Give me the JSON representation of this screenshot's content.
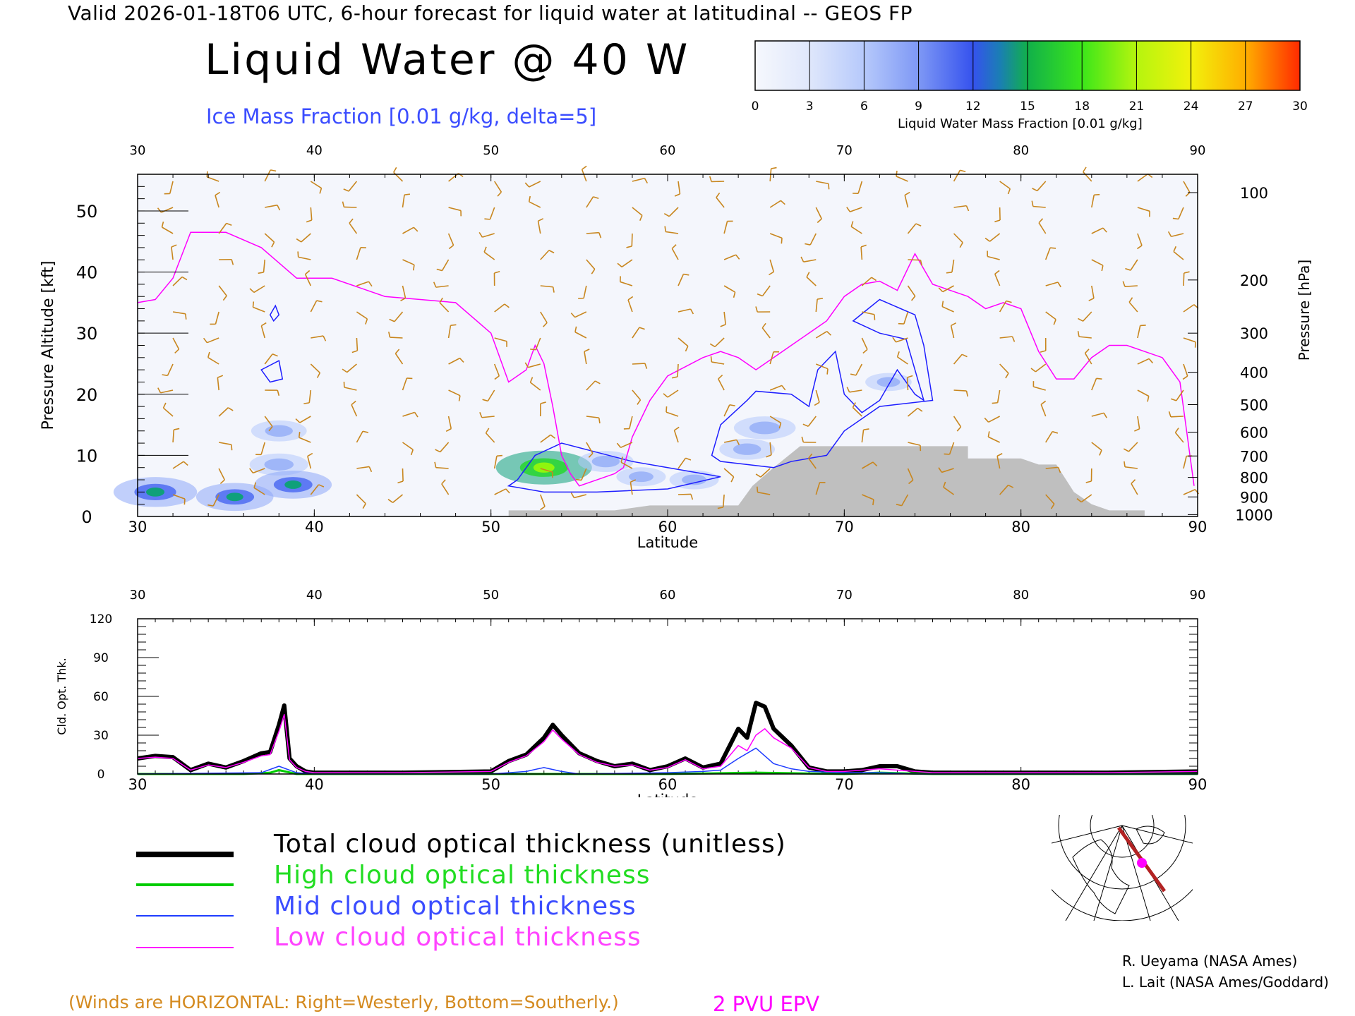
{
  "header": {
    "valid_line": "Valid 2026-01-18T06 UTC, 6-hour forecast for liquid water at latitudinal -- GEOS FP",
    "title": "Liquid Water @ 40 W",
    "ice_label": "Ice Mass Fraction [0.01 g/kg, delta=5]"
  },
  "colorbar": {
    "ticks": [
      "0",
      "3",
      "6",
      "9",
      "12",
      "15",
      "18",
      "21",
      "24",
      "27",
      "30"
    ],
    "label": "Liquid Water Mass Fraction [0.01 g/kg]",
    "colors": [
      "#f4f6fc",
      "#dde5fb",
      "#b4c8fb",
      "#8ea8f7",
      "#3f5ff0",
      "#0fa07a",
      "#1ed81e",
      "#8ff50e",
      "#f6f40c",
      "#ffb000",
      "#ff3c00"
    ]
  },
  "chart_data": [
    {
      "type": "heatmap",
      "name": "cross-section",
      "x_label": "Latitude",
      "y_label_left": "Pressure Altitude [kft]",
      "y_label_right": "Pressure [hPa]",
      "x_ticks": [
        "30",
        "40",
        "50",
        "60",
        "70",
        "80",
        "90"
      ],
      "y_ticks_left": [
        "0",
        "10",
        "20",
        "30",
        "40",
        "50"
      ],
      "y_ticks_right": [
        "100",
        "200",
        "300",
        "400",
        "500",
        "600",
        "700",
        "800",
        "900",
        "1000"
      ],
      "xlim": [
        30,
        90
      ],
      "ylim": [
        0,
        56
      ],
      "right_tick_altitudes_kft": [
        53,
        38.7,
        30,
        23.6,
        18.3,
        13.8,
        9.9,
        6.4,
        3.2,
        0.3
      ],
      "liquid_water_blobs": [
        {
          "lat": 31.0,
          "alt": 4.0,
          "value": 16
        },
        {
          "lat": 35.5,
          "alt": 3.2,
          "value": 14
        },
        {
          "lat": 38.0,
          "alt": 14.0,
          "value": 7
        },
        {
          "lat": 38.0,
          "alt": 8.5,
          "value": 8
        },
        {
          "lat": 38.8,
          "alt": 5.2,
          "value": 14
        },
        {
          "lat": 53.0,
          "alt": 8.0,
          "value": 20
        },
        {
          "lat": 56.5,
          "alt": 9.0,
          "value": 7
        },
        {
          "lat": 58.5,
          "alt": 6.5,
          "value": 5
        },
        {
          "lat": 61.5,
          "alt": 6.0,
          "value": 5
        },
        {
          "lat": 64.5,
          "alt": 11.0,
          "value": 7
        },
        {
          "lat": 65.5,
          "alt": 14.5,
          "value": 9
        },
        {
          "lat": 72.5,
          "alt": 22.0,
          "value": 4
        }
      ],
      "terrain_alt_kft": [
        [
          51,
          1
        ],
        [
          57,
          1
        ],
        [
          59,
          1.8
        ],
        [
          64,
          1.8
        ],
        [
          64.8,
          5
        ],
        [
          66,
          8
        ],
        [
          67.5,
          11.5
        ],
        [
          74,
          11.5
        ],
        [
          77,
          11.5
        ],
        [
          77,
          9.5
        ],
        [
          80,
          9.5
        ],
        [
          81,
          8.5
        ],
        [
          82,
          8.5
        ],
        [
          83,
          4
        ],
        [
          84,
          2
        ],
        [
          85,
          1
        ],
        [
          87,
          1
        ]
      ],
      "pvu2_alt_kft": [
        [
          30,
          35
        ],
        [
          31,
          35.5
        ],
        [
          32,
          39
        ],
        [
          33,
          46.5
        ],
        [
          34,
          46.5
        ],
        [
          35,
          46.5
        ],
        [
          37,
          44
        ],
        [
          39,
          39
        ],
        [
          41,
          39
        ],
        [
          44,
          36
        ],
        [
          46,
          35.5
        ],
        [
          48,
          35
        ],
        [
          50,
          30
        ],
        [
          51,
          22
        ],
        [
          52,
          24
        ],
        [
          52.5,
          28
        ],
        [
          53,
          25
        ],
        [
          53.5,
          18
        ],
        [
          54,
          10
        ],
        [
          54.5,
          7
        ],
        [
          55,
          5
        ],
        [
          56,
          6
        ],
        [
          57,
          7
        ],
        [
          57.5,
          8
        ],
        [
          58,
          13
        ],
        [
          59,
          19
        ],
        [
          60,
          23
        ],
        [
          62,
          26
        ],
        [
          63,
          27
        ],
        [
          64,
          26
        ],
        [
          65,
          24
        ],
        [
          67,
          28
        ],
        [
          69,
          32
        ],
        [
          70,
          36
        ],
        [
          71,
          38
        ],
        [
          72,
          38.5
        ],
        [
          73,
          37
        ],
        [
          74,
          43
        ],
        [
          75,
          38
        ],
        [
          76,
          37
        ],
        [
          77,
          36
        ],
        [
          78,
          34
        ],
        [
          79,
          35
        ],
        [
          80,
          34
        ],
        [
          81,
          27
        ],
        [
          82,
          22.5
        ],
        [
          83,
          22.5
        ],
        [
          84,
          26
        ],
        [
          85,
          28
        ],
        [
          86,
          28
        ],
        [
          88,
          26
        ],
        [
          89,
          22
        ],
        [
          89.8,
          5
        ]
      ],
      "ice_contours_alt_kft": [
        [
          [
            37.5,
            33
          ],
          [
            37.8,
            34.5
          ],
          [
            38.0,
            33
          ],
          [
            37.7,
            32
          ]
        ],
        [
          [
            37.0,
            24
          ],
          [
            38.0,
            25.5
          ],
          [
            38.2,
            22.5
          ],
          [
            37.5,
            22
          ]
        ],
        [
          [
            51.5,
            6
          ],
          [
            52.5,
            10
          ],
          [
            54,
            12
          ],
          [
            56,
            10.5
          ],
          [
            58,
            9
          ],
          [
            60,
            8
          ],
          [
            63,
            6.5
          ],
          [
            60,
            4.5
          ],
          [
            56,
            4
          ],
          [
            53,
            4
          ],
          [
            51,
            5
          ]
        ],
        [
          [
            62.5,
            10
          ],
          [
            63,
            15
          ],
          [
            64.5,
            19
          ],
          [
            65,
            20.5
          ],
          [
            67,
            20
          ],
          [
            68,
            18
          ],
          [
            68.5,
            24
          ],
          [
            69.5,
            27
          ],
          [
            70,
            20
          ],
          [
            71,
            17
          ],
          [
            72,
            19
          ],
          [
            73,
            24
          ],
          [
            74,
            20
          ],
          [
            74.5,
            19
          ],
          [
            73.5,
            29
          ],
          [
            72,
            30
          ],
          [
            70.5,
            32
          ],
          [
            72,
            35.5
          ],
          [
            74,
            33
          ],
          [
            74.5,
            28
          ],
          [
            75,
            19
          ],
          [
            72,
            18
          ],
          [
            70,
            14
          ],
          [
            69,
            10
          ],
          [
            67,
            9
          ],
          [
            66,
            8
          ],
          [
            64.5,
            8.5
          ],
          [
            63,
            9
          ]
        ]
      ]
    },
    {
      "type": "line",
      "name": "cloud-optical-thickness",
      "x_label": "Latitude",
      "y_label": "Cld. Opt. Thk.",
      "x_ticks": [
        "30",
        "40",
        "50",
        "60",
        "70",
        "80",
        "90"
      ],
      "y_ticks": [
        "0",
        "30",
        "60",
        "90",
        "120"
      ],
      "xlim": [
        30,
        90
      ],
      "ylim": [
        0,
        120
      ],
      "series": [
        {
          "name": "Total cloud optical thickness (unitless)",
          "color": "#000000",
          "x": [
            30,
            31,
            32,
            33,
            34,
            35,
            36,
            37,
            37.5,
            38,
            38.3,
            38.6,
            39,
            39.5,
            40,
            45,
            50,
            51,
            52,
            53,
            53.5,
            54,
            55,
            56,
            57,
            58,
            59,
            60,
            61,
            62,
            63,
            64,
            64.5,
            65,
            65.5,
            66,
            67,
            68,
            69,
            70,
            71,
            72,
            73,
            74,
            75,
            80,
            85,
            90
          ],
          "y": [
            12,
            14,
            13,
            3,
            8,
            5,
            10,
            16,
            17,
            38,
            53,
            12,
            6,
            2,
            1,
            1,
            2,
            10,
            15,
            28,
            38,
            30,
            16,
            10,
            6,
            8,
            3,
            6,
            12,
            5,
            8,
            35,
            28,
            55,
            52,
            35,
            22,
            5,
            2,
            2,
            3,
            6,
            6,
            2,
            1,
            1,
            1,
            2
          ]
        },
        {
          "name": "High cloud optical thickness",
          "color": "#00cc00",
          "x": [
            30,
            36,
            37.5,
            38,
            39,
            40,
            50,
            60,
            65,
            70,
            72,
            75,
            80,
            90
          ],
          "y": [
            0,
            0,
            1,
            3,
            0,
            0,
            0,
            0,
            1,
            0,
            1,
            0,
            0,
            0
          ]
        },
        {
          "name": "Mid cloud optical thickness",
          "color": "#1e3cff",
          "x": [
            30,
            37,
            38,
            39,
            40,
            50,
            52,
            53,
            54,
            55,
            60,
            62,
            63,
            64,
            65,
            66,
            67,
            68,
            70,
            72,
            74,
            80,
            90
          ],
          "y": [
            0,
            1,
            6,
            1,
            0,
            0,
            2,
            5,
            2,
            0,
            1,
            2,
            3,
            12,
            20,
            8,
            4,
            2,
            1,
            1,
            0,
            0,
            0
          ]
        },
        {
          "name": "Low cloud optical thickness",
          "color": "#ff00ff",
          "x": [
            30,
            31,
            32,
            33,
            34,
            35,
            36,
            37,
            37.5,
            38,
            38.3,
            38.6,
            39,
            39.5,
            40,
            45,
            50,
            51,
            52,
            53,
            53.5,
            54,
            55,
            56,
            57,
            58,
            59,
            60,
            61,
            62,
            63,
            64,
            64.5,
            65,
            65.5,
            66,
            67,
            68,
            69,
            70,
            72,
            75,
            80,
            85,
            90
          ],
          "y": [
            12,
            13,
            12,
            3,
            7,
            5,
            9,
            14,
            15,
            33,
            46,
            11,
            5,
            2,
            1,
            1,
            2,
            9,
            14,
            25,
            34,
            27,
            15,
            9,
            6,
            7,
            3,
            5,
            11,
            4,
            6,
            22,
            18,
            30,
            35,
            28,
            20,
            5,
            2,
            2,
            4,
            1,
            1,
            1,
            2
          ]
        }
      ]
    }
  ],
  "legend": {
    "total": "Total cloud optical thickness (unitless)",
    "high": "High cloud optical thickness",
    "mid": "Mid cloud optical thickness",
    "low": "Low cloud optical thickness"
  },
  "credits": {
    "line1": "R. Ueyama (NASA Ames)",
    "line2": "L. Lait (NASA Ames/Goddard)"
  },
  "footer": {
    "winds_note": "(Winds are HORIZONTAL: Right=Westerly, Bottom=Southerly.)",
    "pvu": "2 PVU EPV"
  }
}
